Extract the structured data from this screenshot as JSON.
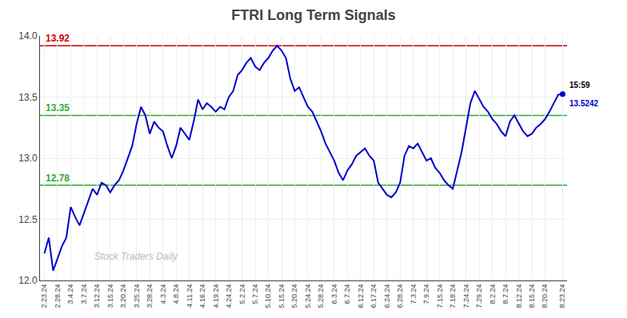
{
  "chart_data": {
    "type": "line",
    "title": "FTRI Long Term Signals",
    "categories": [
      "2.23.24",
      null,
      null,
      "2.28.24",
      null,
      null,
      "3.4.24",
      null,
      null,
      "3.7.24",
      null,
      null,
      "3.12.24",
      null,
      null,
      "3.15.24",
      null,
      null,
      "3.20.24",
      null,
      null,
      "3.25.24",
      null,
      null,
      "3.28.24",
      null,
      null,
      "4.3.24",
      null,
      null,
      "4.8.24",
      null,
      null,
      "4.11.24",
      null,
      null,
      "4.16.24",
      null,
      null,
      "4.19.24",
      null,
      null,
      "4.24.24",
      null,
      null,
      "5.2.24",
      null,
      null,
      "5.7.24",
      null,
      null,
      "5.10.24",
      null,
      null,
      "5.15.24",
      null,
      null,
      "5.20.24",
      null,
      null,
      "5.24.24",
      null,
      null,
      "5.28.24",
      null,
      null,
      "6.3.24",
      null,
      null,
      "6.7.24",
      null,
      null,
      "6.12.24",
      null,
      null,
      "6.17.24",
      null,
      null,
      "6.24.24",
      null,
      null,
      "6.28.24",
      null,
      null,
      "7.3.24",
      null,
      null,
      "7.9.24",
      null,
      null,
      "7.15.24",
      null,
      null,
      "7.18.24",
      null,
      null,
      "7.24.24",
      null,
      null,
      "7.29.24",
      null,
      null,
      "8.2.24",
      null,
      null,
      "8.7.24",
      null,
      null,
      "8.12.24",
      null,
      null,
      "8.15.24",
      null,
      null,
      "8.20.24",
      null,
      null,
      null,
      "8.23.24"
    ],
    "values": [
      12.22,
      12.35,
      12.08,
      12.18,
      12.28,
      12.35,
      12.6,
      12.52,
      12.45,
      12.55,
      12.65,
      12.75,
      12.7,
      12.8,
      12.78,
      12.72,
      12.78,
      12.82,
      12.9,
      13.0,
      13.1,
      13.28,
      13.42,
      13.35,
      13.2,
      13.3,
      13.25,
      13.22,
      13.1,
      13.0,
      13.1,
      13.25,
      13.2,
      13.15,
      13.3,
      13.48,
      13.4,
      13.45,
      13.42,
      13.38,
      13.42,
      13.4,
      13.5,
      13.55,
      13.68,
      13.72,
      13.78,
      13.82,
      13.75,
      13.72,
      13.78,
      13.82,
      13.88,
      13.92,
      13.88,
      13.82,
      13.65,
      13.55,
      13.58,
      13.5,
      13.42,
      13.38,
      13.3,
      13.22,
      13.12,
      13.05,
      12.98,
      12.88,
      12.82,
      12.9,
      12.95,
      13.02,
      13.05,
      13.08,
      13.02,
      12.98,
      12.8,
      12.75,
      12.7,
      12.68,
      12.72,
      12.8,
      13.02,
      13.1,
      13.08,
      13.12,
      13.05,
      12.98,
      13.0,
      12.92,
      12.88,
      12.82,
      12.78,
      12.75,
      12.9,
      13.05,
      13.25,
      13.45,
      13.55,
      13.48,
      13.42,
      13.38,
      13.32,
      13.28,
      13.22,
      13.18,
      13.3,
      13.35,
      13.28,
      13.22,
      13.18,
      13.2,
      13.25,
      13.28,
      13.32,
      13.38,
      13.45,
      13.52,
      13.5242
    ],
    "color": "#0000cc",
    "ylim": [
      12.0,
      14.0
    ],
    "yticks": [
      {
        "value": 12.0,
        "label": "12.0"
      },
      12.5,
      {
        "value": 13.0,
        "label": "13.0"
      },
      13.5,
      {
        "value": 14.0,
        "label": "14.0"
      }
    ],
    "grid": true,
    "reference_lines": [
      {
        "value": 13.92,
        "label": "13.92",
        "color": "#cc0000"
      },
      {
        "value": 13.35,
        "label": "13.35",
        "color": "#33aa33"
      },
      {
        "value": 12.78,
        "label": "12.78",
        "color": "#33aa33"
      }
    ],
    "last_point": {
      "label": "15:59",
      "value": 13.5242
    },
    "watermark": "Stock Traders Daily"
  }
}
